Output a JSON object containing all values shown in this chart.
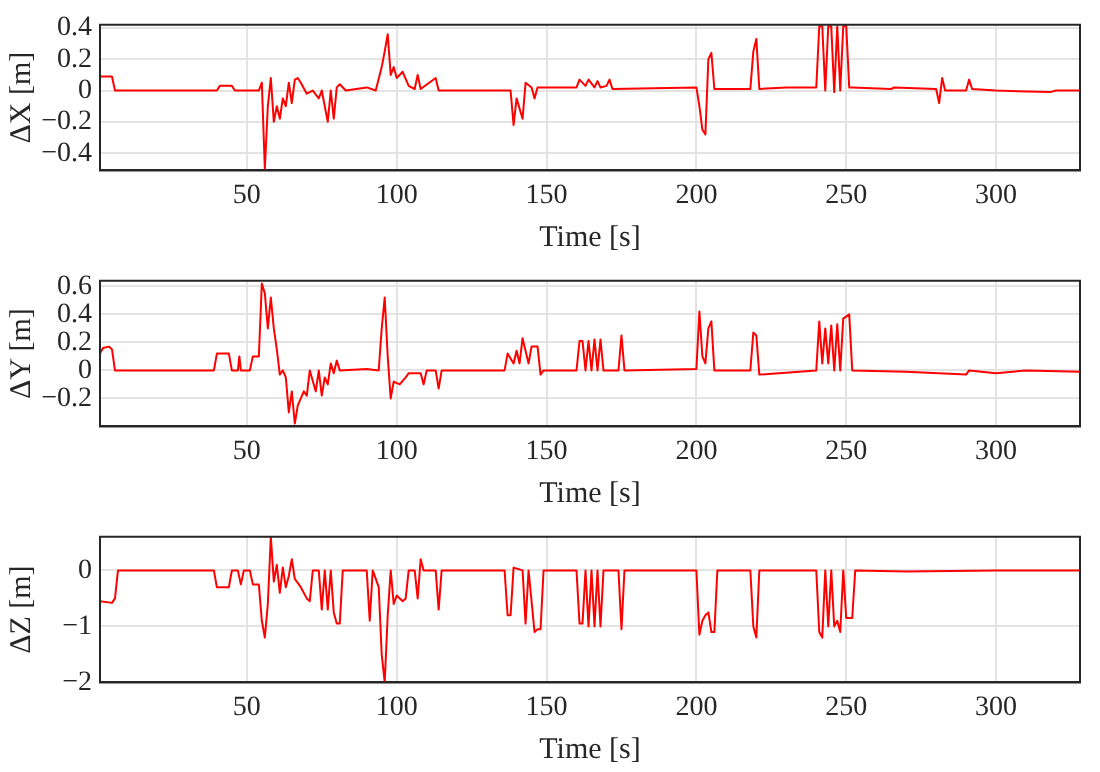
{
  "chart_data": [
    {
      "type": "line",
      "xlabel": "Time [s]",
      "ylabel": "ΔX [m]",
      "xlim": [
        1,
        328
      ],
      "xticks": [
        50,
        100,
        150,
        200,
        250,
        300
      ],
      "ylim": [
        -0.51,
        0.42
      ],
      "yticks": [
        -0.4,
        -0.2,
        0,
        0.2,
        0.4
      ],
      "grid": true,
      "marker": "none",
      "x": [
        1,
        5,
        6,
        40,
        41,
        45,
        46,
        54,
        55,
        56,
        57,
        58,
        59,
        60,
        61,
        62,
        63,
        64,
        65,
        66,
        67,
        68,
        70,
        72,
        74,
        75,
        77,
        78,
        79,
        80,
        81,
        83,
        90,
        93,
        95,
        96,
        97,
        98,
        99,
        100,
        102,
        104,
        106,
        107,
        108,
        113,
        114,
        138,
        139,
        140,
        142,
        143,
        145,
        146,
        147,
        160,
        161,
        163,
        164,
        166,
        167,
        168,
        170,
        171,
        172,
        200,
        201,
        202,
        203,
        204,
        205,
        206,
        218,
        219,
        220,
        221,
        230,
        240,
        241,
        242,
        243,
        244,
        245,
        246,
        247,
        248,
        249,
        250,
        251,
        252,
        265,
        266,
        280,
        281,
        282,
        283,
        290,
        291,
        292,
        300,
        318,
        320,
        328
      ],
      "series": [
        {
          "color": "#ff0000",
          "values": [
            0.09,
            0.09,
            0.0,
            0.0,
            0.03,
            0.03,
            0.0,
            0.0,
            0.05,
            -0.5,
            -0.1,
            0.08,
            -0.2,
            -0.1,
            -0.18,
            -0.05,
            -0.1,
            0.05,
            -0.08,
            0.07,
            0.08,
            0.05,
            -0.02,
            0.0,
            -0.05,
            0.0,
            -0.2,
            0.0,
            -0.18,
            0.02,
            0.04,
            0.0,
            0.02,
            0.0,
            0.15,
            0.25,
            0.36,
            0.1,
            0.15,
            0.08,
            0.12,
            0.03,
            0.01,
            0.1,
            0.01,
            0.08,
            0.0,
            0.0,
            -0.22,
            -0.05,
            -0.18,
            0.05,
            0.02,
            -0.05,
            0.02,
            0.02,
            0.07,
            0.03,
            0.07,
            0.02,
            0.06,
            0.02,
            0.03,
            0.07,
            0.01,
            0.02,
            -0.1,
            -0.25,
            -0.28,
            0.2,
            0.24,
            0.01,
            0.01,
            0.25,
            0.33,
            0.01,
            0.02,
            0.02,
            0.41,
            0.41,
            0.0,
            0.41,
            0.41,
            -0.01,
            0.41,
            0.0,
            0.41,
            0.41,
            0.02,
            0.02,
            0.01,
            0.02,
            0.01,
            -0.08,
            0.08,
            0.0,
            0.0,
            0.07,
            0.01,
            0.0,
            -0.01,
            0.0,
            0.0
          ]
        }
      ]
    },
    {
      "type": "line",
      "xlabel": "Time [s]",
      "ylabel": "ΔY [m]",
      "xlim": [
        1,
        328
      ],
      "xticks": [
        50,
        100,
        150,
        200,
        250,
        300
      ],
      "ylim": [
        -0.4,
        0.64
      ],
      "yticks": [
        -0.2,
        0,
        0.2,
        0.4,
        0.6
      ],
      "grid": true,
      "marker": "none",
      "x": [
        1,
        2,
        4,
        5,
        6,
        39,
        40,
        44,
        45,
        47,
        47.5,
        48,
        51,
        52,
        54,
        55,
        56,
        57,
        58,
        59,
        60,
        61,
        62,
        63,
        64,
        65,
        66,
        67,
        68,
        69,
        70,
        71,
        73,
        74,
        75,
        76,
        77,
        78,
        79,
        80,
        81,
        90,
        94,
        95,
        96,
        97,
        98,
        99,
        101,
        103,
        104,
        108,
        109,
        110,
        113,
        114,
        115,
        136,
        137,
        139,
        140,
        141,
        142,
        144,
        145,
        147,
        148,
        149,
        160,
        161,
        162,
        163,
        164,
        165,
        166,
        167,
        168,
        169,
        174,
        175,
        176,
        200,
        201,
        202,
        203,
        204,
        205,
        206,
        218,
        219,
        220,
        221,
        240,
        241,
        242,
        243,
        244,
        245,
        246,
        247,
        248,
        249,
        251,
        252,
        270,
        290,
        291,
        300,
        310,
        328
      ],
      "series": [
        {
          "color": "#ff0000",
          "values": [
            0.12,
            0.16,
            0.17,
            0.15,
            0.0,
            0.0,
            0.12,
            0.12,
            0.0,
            0.0,
            0.1,
            0.0,
            0.0,
            0.1,
            0.1,
            0.62,
            0.55,
            0.3,
            0.52,
            0.3,
            0.15,
            -0.03,
            0.0,
            -0.05,
            -0.3,
            -0.15,
            -0.38,
            -0.25,
            -0.2,
            -0.15,
            -0.18,
            0.0,
            -0.15,
            0.0,
            -0.18,
            -0.05,
            -0.1,
            0.05,
            -0.02,
            0.07,
            0.0,
            0.01,
            0.0,
            0.3,
            0.52,
            0.1,
            -0.2,
            -0.08,
            -0.1,
            -0.05,
            -0.02,
            -0.02,
            -0.1,
            0.0,
            0.0,
            -0.13,
            0.0,
            0.0,
            0.12,
            0.05,
            0.14,
            0.05,
            0.23,
            0.05,
            0.17,
            0.17,
            -0.03,
            0.0,
            0.0,
            0.21,
            0.21,
            0.0,
            0.21,
            0.0,
            0.22,
            0.0,
            0.22,
            0.0,
            0.0,
            0.25,
            0.0,
            0.01,
            0.42,
            0.1,
            0.05,
            0.3,
            0.35,
            0.0,
            0.0,
            0.27,
            0.25,
            -0.03,
            0.0,
            0.35,
            0.05,
            0.3,
            0.05,
            0.32,
            0.0,
            0.33,
            0.0,
            0.37,
            0.4,
            0.0,
            -0.01,
            -0.03,
            0.0,
            -0.02,
            0.0,
            -0.01
          ]
        }
      ]
    },
    {
      "type": "line",
      "xlabel": "Time [s]",
      "ylabel": "ΔZ [m]",
      "xlim": [
        1,
        328
      ],
      "xticks": [
        50,
        100,
        150,
        200,
        250,
        300
      ],
      "ylim": [
        -2,
        0.6
      ],
      "yticks": [
        -2,
        -1,
        0
      ],
      "grid": true,
      "marker": "none",
      "x": [
        1,
        5,
        6,
        7,
        39,
        40,
        44,
        45,
        47,
        48,
        49,
        51,
        52,
        54,
        55,
        56,
        57,
        58,
        59,
        60,
        61,
        62,
        63,
        64,
        65,
        66,
        68,
        70,
        71,
        72,
        74,
        75,
        76,
        77,
        78,
        79,
        80,
        81,
        82,
        90,
        91,
        92,
        94,
        95,
        96,
        97,
        98,
        99,
        100,
        102,
        103,
        104,
        106,
        107,
        108,
        109,
        113,
        114,
        115,
        136,
        137,
        138,
        139,
        142,
        143,
        144,
        146,
        147,
        148,
        149,
        160,
        161,
        162,
        163,
        164,
        165,
        166,
        167,
        168,
        169,
        174,
        175,
        176,
        200,
        201,
        202,
        203,
        204,
        205,
        206,
        207,
        218,
        219,
        220,
        221,
        240,
        241,
        242,
        243,
        244,
        245,
        246,
        247,
        248,
        249,
        250,
        252,
        253,
        270,
        300,
        328
      ],
      "series": [
        {
          "color": "#ff0000",
          "values": [
            -0.55,
            -0.58,
            -0.5,
            0.0,
            0.0,
            -0.3,
            -0.3,
            0.0,
            0.0,
            -0.25,
            0.0,
            0.0,
            -0.25,
            -0.25,
            -0.9,
            -1.2,
            -0.6,
            0.6,
            -0.2,
            0.1,
            -0.4,
            0.05,
            -0.3,
            -0.1,
            0.2,
            -0.15,
            -0.3,
            -0.5,
            -0.55,
            0.0,
            0.0,
            -0.7,
            0.0,
            -0.7,
            0.0,
            -0.75,
            -0.95,
            -0.95,
            0.0,
            0.0,
            -0.9,
            0.0,
            -0.3,
            -1.5,
            -2.0,
            -0.8,
            0.0,
            -0.6,
            -0.45,
            -0.55,
            -0.5,
            0.0,
            0.0,
            -0.5,
            0.2,
            0.0,
            0.0,
            -0.7,
            0.0,
            0.0,
            -0.8,
            -0.8,
            0.05,
            0.0,
            -0.95,
            0.0,
            -1.1,
            -1.05,
            -1.05,
            0.0,
            0.0,
            -0.95,
            -0.95,
            0.0,
            -1.0,
            0.0,
            -1.0,
            0.0,
            -1.0,
            0.0,
            0.0,
            -1.05,
            0.0,
            0.0,
            -1.15,
            -0.9,
            -0.8,
            -0.75,
            -1.1,
            -1.1,
            0.0,
            0.0,
            -1.0,
            -1.2,
            0.0,
            0.0,
            -1.1,
            -1.2,
            0.0,
            -1.0,
            0.0,
            -1.0,
            -0.9,
            -1.1,
            0.0,
            -0.85,
            -0.85,
            0.0,
            -0.02,
            0.0,
            0.0
          ]
        }
      ]
    }
  ]
}
